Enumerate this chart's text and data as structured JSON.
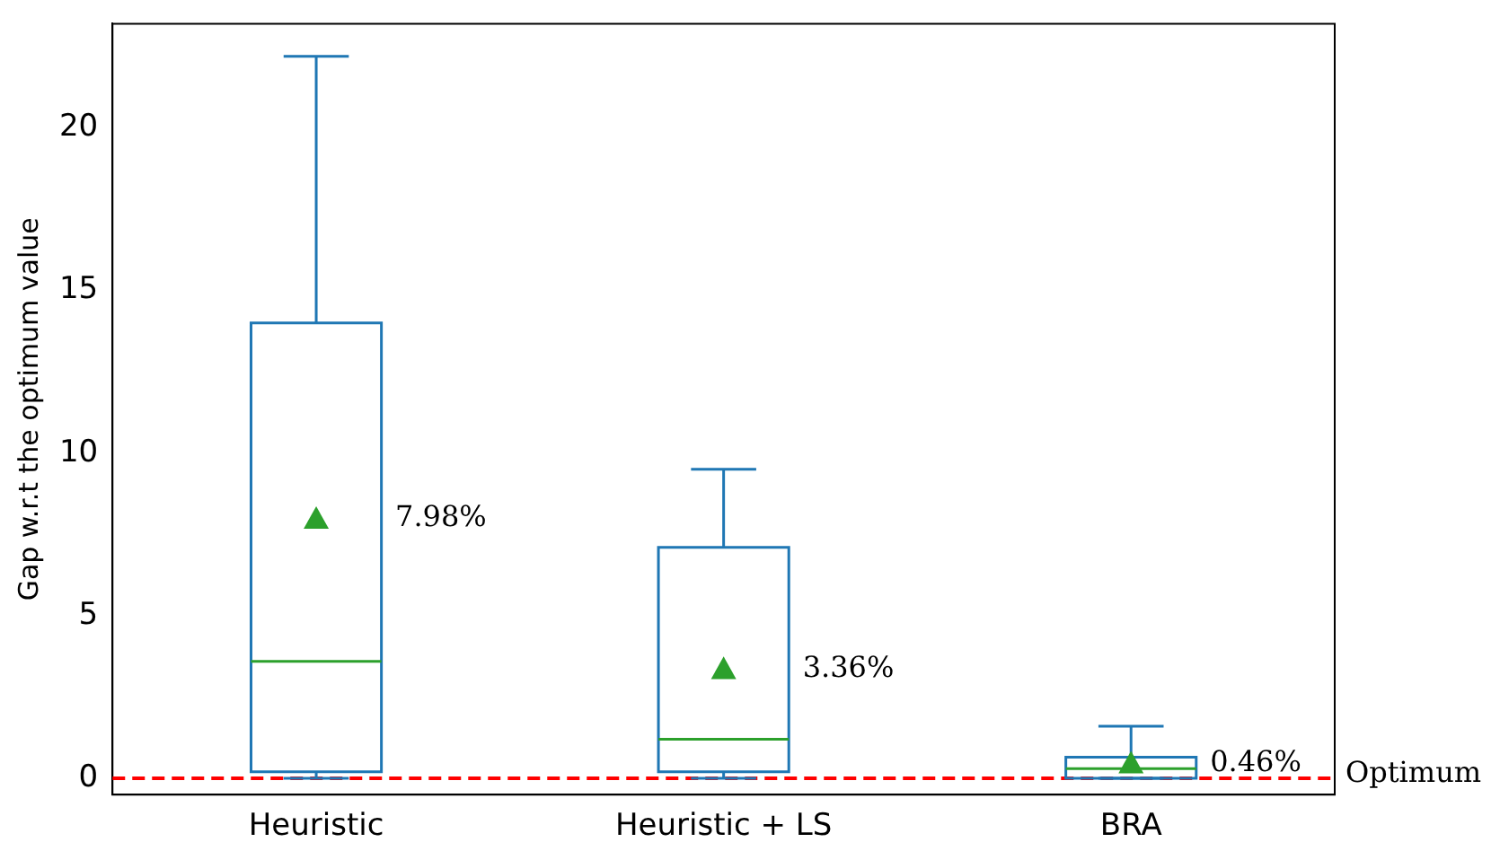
{
  "chart_data": {
    "type": "box",
    "ylabel": "Gap w.r.t the optimum value",
    "categories": [
      "Heuristic",
      "Heuristic + LS",
      "BRA"
    ],
    "series": [
      {
        "color": "#1f77b4",
        "boxes": [
          {
            "low": 0,
            "q1": 0.2,
            "median": 3.6,
            "q3": 14.0,
            "high": 22.2,
            "mean": 7.98
          },
          {
            "low": 0,
            "q1": 0.2,
            "median": 1.2,
            "q3": 7.1,
            "high": 9.5,
            "mean": 3.36
          },
          {
            "low": 0,
            "q1": 0,
            "median": 0.3,
            "q3": 0.65,
            "high": 1.6,
            "mean": 0.46
          }
        ]
      }
    ],
    "ylim": [
      -0.5,
      23.2
    ],
    "yticks": [
      0,
      5,
      10,
      15,
      20
    ],
    "grid": false,
    "legend": false,
    "marker": "triangle",
    "ref_lines": [
      {
        "axis": "y",
        "value": 0,
        "label": "Optimum",
        "color": "#ff0000",
        "line_style": "dashed"
      }
    ],
    "annotations": [
      "7.98%",
      "3.36%",
      "0.46%"
    ]
  }
}
